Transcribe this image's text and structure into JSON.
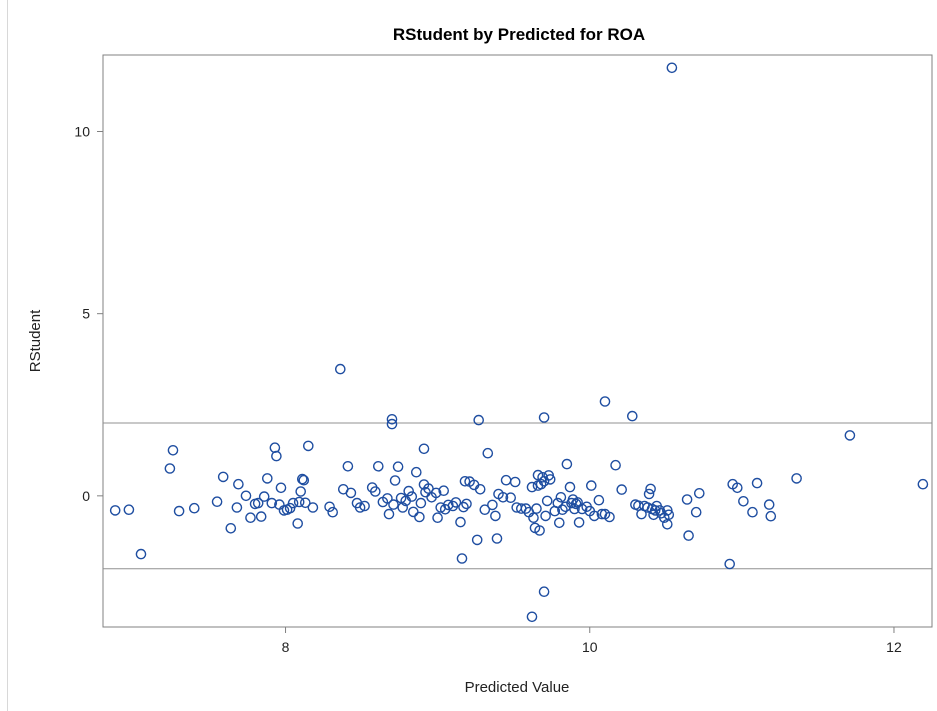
{
  "chart_data": {
    "type": "scatter",
    "title": "RStudent by Predicted for ROA",
    "xlabel": "Predicted Value",
    "ylabel": "RStudent",
    "xlim": [
      6.8,
      12.25
    ],
    "ylim": [
      -3.6,
      12.1
    ],
    "xticks": [
      8,
      10,
      12
    ],
    "yticks": [
      0,
      5,
      10
    ],
    "reference_lines_y": [
      2,
      -2
    ],
    "grid": false,
    "marker": "circle-open",
    "series": [
      {
        "color": "#1f4ea1",
        "points": [
          [
            6.88,
            -0.4
          ],
          [
            6.97,
            -0.38
          ],
          [
            7.05,
            -1.6
          ],
          [
            7.24,
            0.75
          ],
          [
            7.26,
            1.25
          ],
          [
            7.3,
            -0.42
          ],
          [
            7.4,
            -0.34
          ],
          [
            7.55,
            -0.16
          ],
          [
            7.59,
            0.52
          ],
          [
            7.64,
            -0.89
          ],
          [
            7.68,
            -0.32
          ],
          [
            7.69,
            0.32
          ],
          [
            7.74,
            0.0
          ],
          [
            7.77,
            -0.6
          ],
          [
            7.8,
            -0.22
          ],
          [
            7.82,
            -0.2
          ],
          [
            7.84,
            -0.57
          ],
          [
            7.86,
            -0.02
          ],
          [
            7.88,
            0.48
          ],
          [
            7.91,
            -0.2
          ],
          [
            7.93,
            1.32
          ],
          [
            7.94,
            1.09
          ],
          [
            7.96,
            -0.24
          ],
          [
            7.97,
            0.22
          ],
          [
            7.99,
            -0.4
          ],
          [
            8.01,
            -0.38
          ],
          [
            8.03,
            -0.34
          ],
          [
            8.05,
            -0.2
          ],
          [
            8.08,
            -0.76
          ],
          [
            8.09,
            -0.17
          ],
          [
            8.1,
            0.12
          ],
          [
            8.11,
            0.46
          ],
          [
            8.12,
            0.43
          ],
          [
            8.13,
            -0.19
          ],
          [
            8.15,
            1.37
          ],
          [
            8.18,
            -0.32
          ],
          [
            8.29,
            -0.3
          ],
          [
            8.31,
            -0.45
          ],
          [
            8.36,
            3.48
          ],
          [
            8.38,
            0.18
          ],
          [
            8.41,
            0.81
          ],
          [
            8.43,
            0.08
          ],
          [
            8.47,
            -0.2
          ],
          [
            8.49,
            -0.32
          ],
          [
            8.52,
            -0.28
          ],
          [
            8.57,
            0.23
          ],
          [
            8.59,
            0.12
          ],
          [
            8.61,
            0.81
          ],
          [
            8.64,
            -0.17
          ],
          [
            8.67,
            -0.07
          ],
          [
            8.68,
            -0.5
          ],
          [
            8.7,
            2.1
          ],
          [
            8.7,
            1.97
          ],
          [
            8.71,
            -0.24
          ],
          [
            8.72,
            0.42
          ],
          [
            8.74,
            0.8
          ],
          [
            8.76,
            -0.06
          ],
          [
            8.77,
            -0.32
          ],
          [
            8.79,
            -0.14
          ],
          [
            8.81,
            0.13
          ],
          [
            8.83,
            -0.02
          ],
          [
            8.84,
            -0.44
          ],
          [
            8.86,
            0.65
          ],
          [
            8.88,
            -0.58
          ],
          [
            8.89,
            -0.2
          ],
          [
            8.91,
            0.31
          ],
          [
            8.91,
            1.29
          ],
          [
            8.92,
            0.1
          ],
          [
            8.94,
            0.2
          ],
          [
            8.96,
            -0.04
          ],
          [
            8.99,
            0.08
          ],
          [
            9.0,
            -0.6
          ],
          [
            9.02,
            -0.32
          ],
          [
            9.04,
            0.14
          ],
          [
            9.05,
            -0.37
          ],
          [
            9.07,
            -0.25
          ],
          [
            9.1,
            -0.28
          ],
          [
            9.12,
            -0.18
          ],
          [
            9.15,
            -0.72
          ],
          [
            9.16,
            -1.72
          ],
          [
            9.17,
            -0.31
          ],
          [
            9.18,
            0.4
          ],
          [
            9.19,
            -0.22
          ],
          [
            9.21,
            0.39
          ],
          [
            9.24,
            0.3
          ],
          [
            9.26,
            -1.21
          ],
          [
            9.27,
            2.08
          ],
          [
            9.28,
            0.18
          ],
          [
            9.31,
            -0.38
          ],
          [
            9.33,
            1.17
          ],
          [
            9.36,
            -0.25
          ],
          [
            9.38,
            -0.55
          ],
          [
            9.39,
            -1.17
          ],
          [
            9.4,
            0.05
          ],
          [
            9.43,
            -0.04
          ],
          [
            9.45,
            0.43
          ],
          [
            9.48,
            -0.05
          ],
          [
            9.51,
            0.38
          ],
          [
            9.52,
            -0.32
          ],
          [
            9.55,
            -0.35
          ],
          [
            9.58,
            -0.35
          ],
          [
            9.6,
            -0.45
          ],
          [
            9.62,
            -3.32
          ],
          [
            9.62,
            0.24
          ],
          [
            9.63,
            -0.6
          ],
          [
            9.64,
            -0.88
          ],
          [
            9.65,
            -0.35
          ],
          [
            9.66,
            0.57
          ],
          [
            9.66,
            0.28
          ],
          [
            9.67,
            -0.95
          ],
          [
            9.68,
            0.32
          ],
          [
            9.69,
            0.51
          ],
          [
            9.7,
            0.4
          ],
          [
            9.7,
            -2.63
          ],
          [
            9.7,
            2.15
          ],
          [
            9.71,
            -0.55
          ],
          [
            9.72,
            -0.14
          ],
          [
            9.73,
            0.56
          ],
          [
            9.74,
            0.45
          ],
          [
            9.77,
            -0.42
          ],
          [
            9.79,
            -0.2
          ],
          [
            9.8,
            -0.74
          ],
          [
            9.81,
            -0.04
          ],
          [
            9.82,
            -0.38
          ],
          [
            9.84,
            -0.3
          ],
          [
            9.85,
            0.87
          ],
          [
            9.87,
            0.24
          ],
          [
            9.88,
            -0.2
          ],
          [
            9.89,
            -0.1
          ],
          [
            9.9,
            -0.36
          ],
          [
            9.91,
            -0.22
          ],
          [
            9.92,
            -0.18
          ],
          [
            9.93,
            -0.73
          ],
          [
            9.95,
            -0.36
          ],
          [
            9.98,
            -0.3
          ],
          [
            10.0,
            -0.42
          ],
          [
            10.01,
            0.28
          ],
          [
            10.03,
            -0.55
          ],
          [
            10.06,
            -0.12
          ],
          [
            10.08,
            -0.5
          ],
          [
            10.1,
            -0.5
          ],
          [
            10.1,
            2.59
          ],
          [
            10.13,
            -0.58
          ],
          [
            10.17,
            0.84
          ],
          [
            10.21,
            0.17
          ],
          [
            10.28,
            2.19
          ],
          [
            10.3,
            -0.24
          ],
          [
            10.32,
            -0.27
          ],
          [
            10.34,
            -0.5
          ],
          [
            10.36,
            -0.28
          ],
          [
            10.38,
            -0.32
          ],
          [
            10.39,
            0.05
          ],
          [
            10.4,
            0.19
          ],
          [
            10.41,
            -0.36
          ],
          [
            10.42,
            -0.52
          ],
          [
            10.43,
            -0.4
          ],
          [
            10.44,
            -0.28
          ],
          [
            10.46,
            -0.4
          ],
          [
            10.47,
            -0.48
          ],
          [
            10.49,
            -0.6
          ],
          [
            10.51,
            -0.4
          ],
          [
            10.51,
            -0.78
          ],
          [
            10.52,
            -0.52
          ],
          [
            10.54,
            11.75
          ],
          [
            10.64,
            -0.1
          ],
          [
            10.65,
            -1.09
          ],
          [
            10.7,
            -0.45
          ],
          [
            10.72,
            0.07
          ],
          [
            10.92,
            -1.87
          ],
          [
            10.94,
            0.32
          ],
          [
            10.97,
            0.22
          ],
          [
            11.01,
            -0.15
          ],
          [
            11.07,
            -0.45
          ],
          [
            11.1,
            0.35
          ],
          [
            11.18,
            -0.24
          ],
          [
            11.19,
            -0.56
          ],
          [
            11.36,
            0.48
          ],
          [
            11.71,
            1.66
          ],
          [
            12.19,
            0.32
          ]
        ]
      }
    ]
  }
}
